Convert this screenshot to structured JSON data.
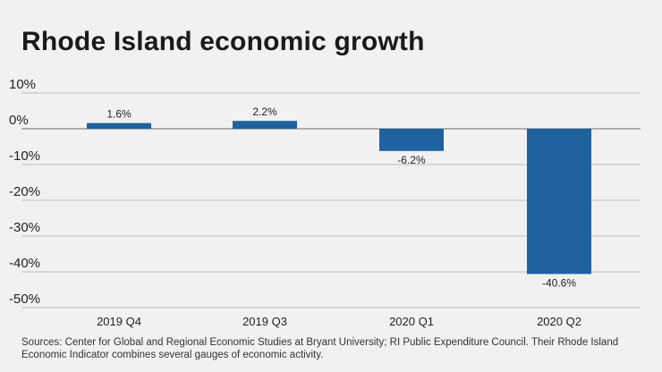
{
  "chart_data": {
    "type": "bar",
    "title": "Rhode Island economic growth",
    "categories": [
      "2019 Q4",
      "2019 Q3",
      "2020 Q1",
      "2020 Q2"
    ],
    "values": [
      1.6,
      2.2,
      -6.2,
      -40.6
    ],
    "data_labels": [
      "1.6%",
      "2.2%",
      "-6.2%",
      "-40.6%"
    ],
    "xlabel": "",
    "ylabel": "",
    "ylim": [
      -50,
      10
    ],
    "yticks": [
      10,
      0,
      -10,
      -20,
      -30,
      -40,
      -50
    ],
    "ytick_labels": [
      "10%",
      "0%",
      "-10%",
      "-20%",
      "-30%",
      "-40%",
      "-50%"
    ],
    "grid": true,
    "bar_color": "#1f62a0"
  },
  "source": "Sources: Center for Global and Regional Economic Studies at Bryant University; RI Public Expenditure Council. Their Rhode Island Economic Indicator combines several gauges of economic activity."
}
